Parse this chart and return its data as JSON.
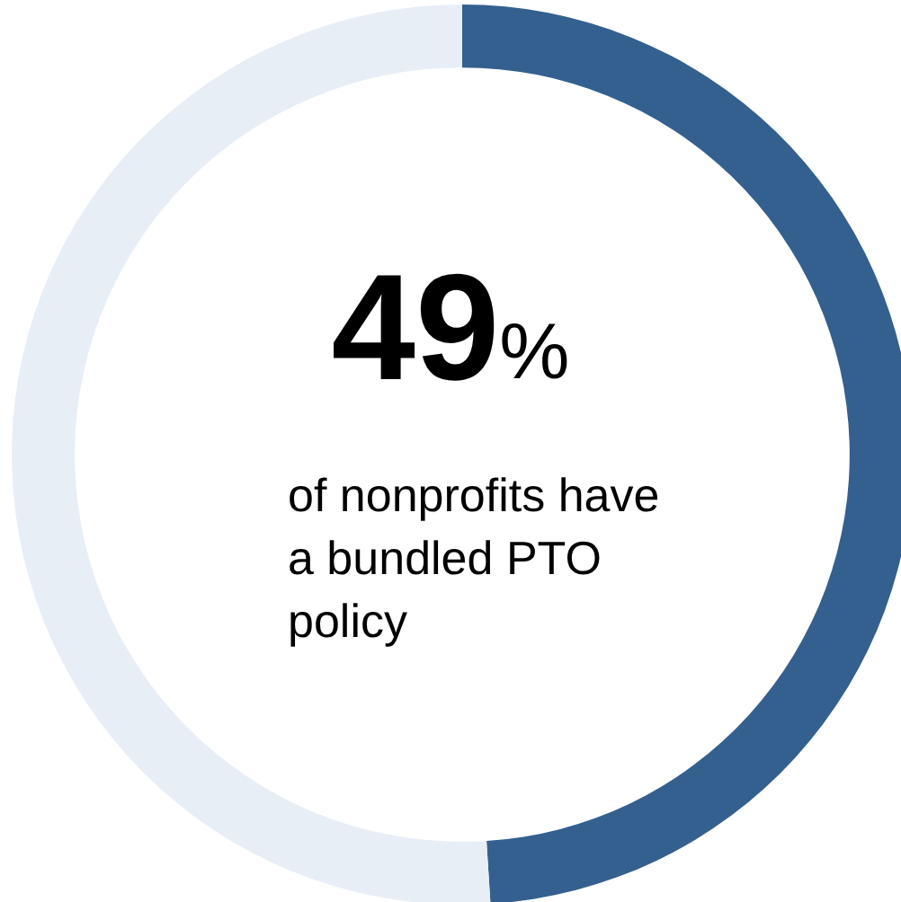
{
  "chart_data": {
    "type": "donut",
    "categories": [
      null,
      null
    ],
    "values": [
      49,
      51
    ],
    "colors": [
      "#34608f",
      "#e8eef6"
    ],
    "annotations": [
      "49%",
      "of nonprofits have a bundled PTO policy"
    ]
  }
}
